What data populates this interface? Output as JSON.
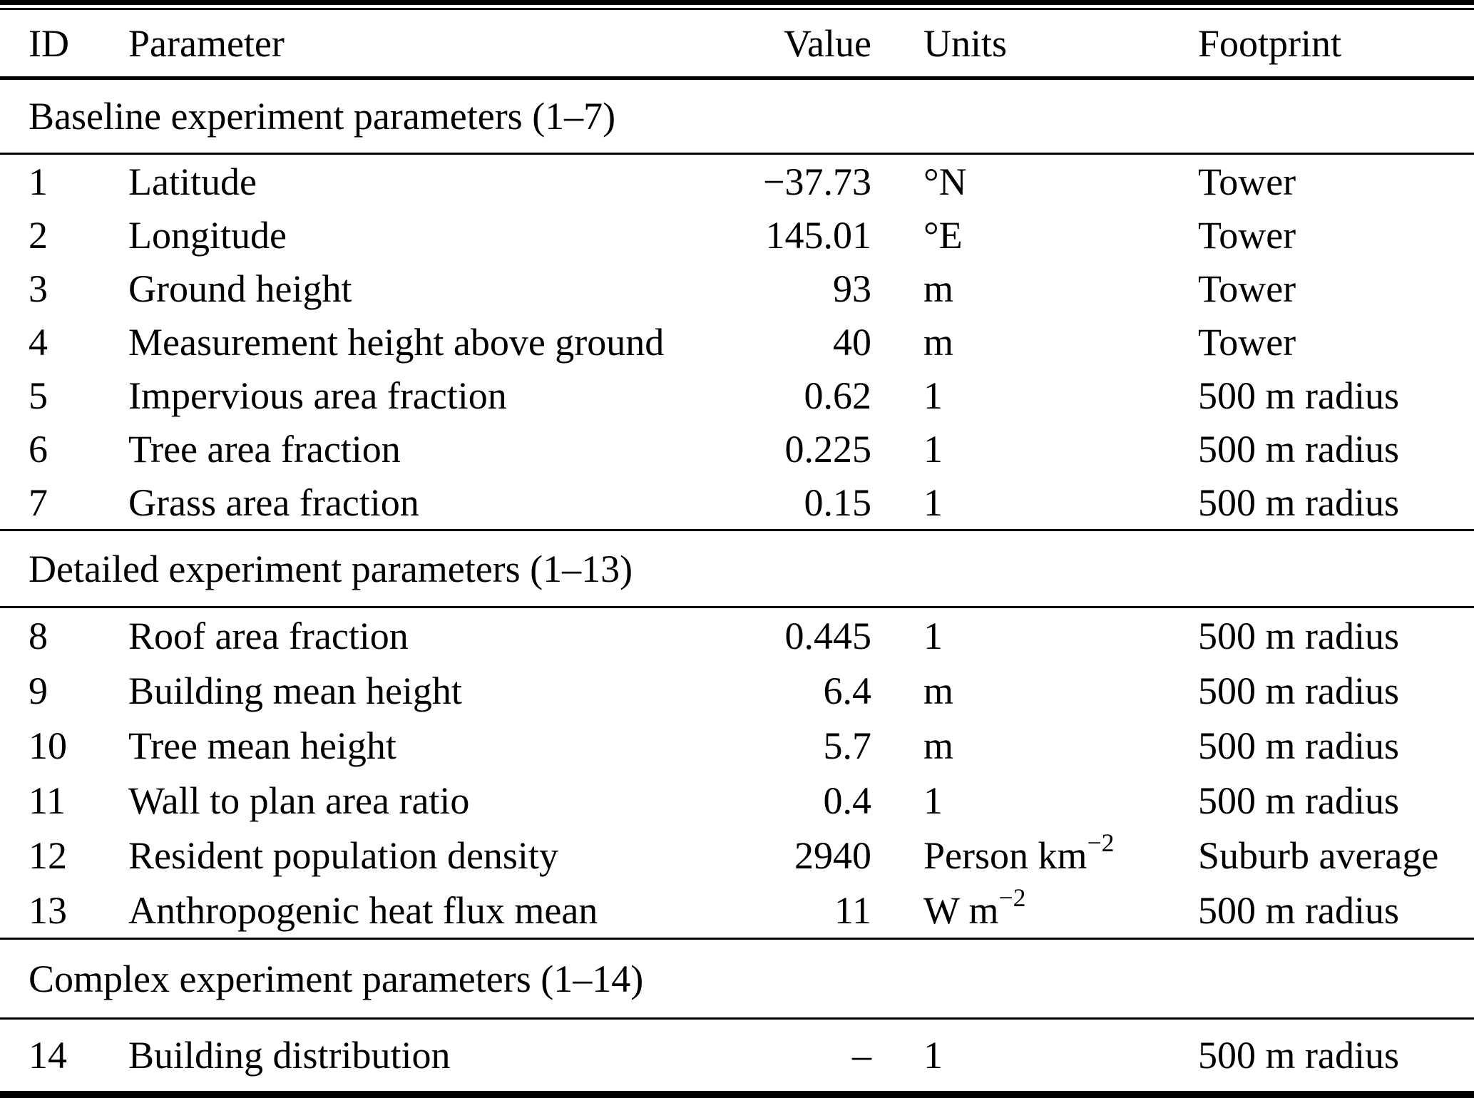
{
  "table": {
    "header": {
      "id": "ID",
      "parameter": "Parameter",
      "value": "Value",
      "units": "Units",
      "footprint": "Footprint"
    },
    "sections": {
      "baseline": "Baseline experiment parameters (1–7)",
      "detailed": "Detailed experiment parameters (1–13)",
      "complex": "Complex experiment parameters (1–14)"
    },
    "rows": [
      {
        "id": "1",
        "parameter": "Latitude",
        "value": "−37.73",
        "units_base": "°N",
        "units_sup": "",
        "footprint": "Tower"
      },
      {
        "id": "2",
        "parameter": "Longitude",
        "value": "145.01",
        "units_base": "°E",
        "units_sup": "",
        "footprint": "Tower"
      },
      {
        "id": "3",
        "parameter": "Ground height",
        "value": "93",
        "units_base": "m",
        "units_sup": "",
        "footprint": "Tower"
      },
      {
        "id": "4",
        "parameter": "Measurement height above ground",
        "value": "40",
        "units_base": "m",
        "units_sup": "",
        "footprint": "Tower"
      },
      {
        "id": "5",
        "parameter": "Impervious area fraction",
        "value": "0.62",
        "units_base": "1",
        "units_sup": "",
        "footprint": "500 m radius"
      },
      {
        "id": "6",
        "parameter": "Tree area fraction",
        "value": "0.225",
        "units_base": "1",
        "units_sup": "",
        "footprint": "500 m radius"
      },
      {
        "id": "7",
        "parameter": "Grass area fraction",
        "value": "0.15",
        "units_base": "1",
        "units_sup": "",
        "footprint": "500 m radius"
      },
      {
        "id": "8",
        "parameter": "Roof area fraction",
        "value": "0.445",
        "units_base": "1",
        "units_sup": "",
        "footprint": "500 m radius"
      },
      {
        "id": "9",
        "parameter": "Building mean height",
        "value": "6.4",
        "units_base": "m",
        "units_sup": "",
        "footprint": "500 m radius"
      },
      {
        "id": "10",
        "parameter": "Tree mean height",
        "value": "5.7",
        "units_base": "m",
        "units_sup": "",
        "footprint": "500 m radius"
      },
      {
        "id": "11",
        "parameter": "Wall to plan area ratio",
        "value": "0.4",
        "units_base": "1",
        "units_sup": "",
        "footprint": "500 m radius"
      },
      {
        "id": "12",
        "parameter": "Resident population density",
        "value": "2940",
        "units_base": "Person km",
        "units_sup": "−2",
        "footprint": "Suburb average"
      },
      {
        "id": "13",
        "parameter": "Anthropogenic heat flux mean",
        "value": "11",
        "units_base": "W m",
        "units_sup": "−2",
        "footprint": "500 m radius"
      },
      {
        "id": "14",
        "parameter": "Building distribution",
        "value": "–",
        "units_base": "1",
        "units_sup": "",
        "footprint": "500 m radius"
      }
    ]
  }
}
